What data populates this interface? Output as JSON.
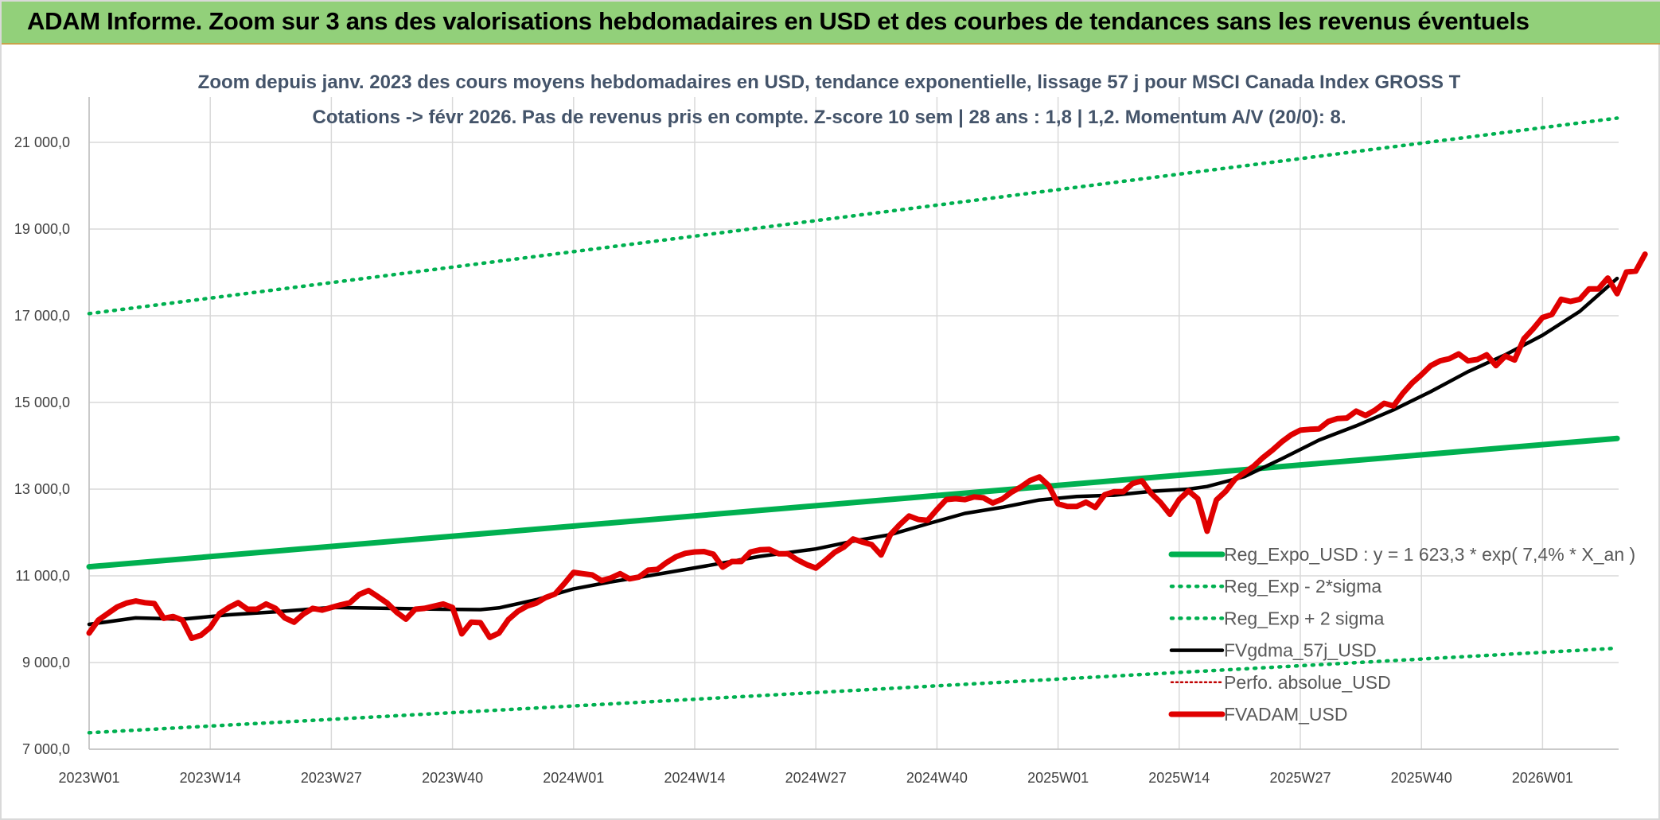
{
  "banner": {
    "title": "ADAM Informe. Zoom sur 3 ans des valorisations hebdomadaires en USD et des courbes de tendances sans les revenus éventuels"
  },
  "chart_data": {
    "type": "line",
    "title": "Zoom depuis janv. 2023 des cours moyens hebdomadaires en USD, tendance exponentielle, lissage 57 j pour MSCI Canada Index GROSS T",
    "subtitle": "Cotations -> févr 2026. Pas de revenus pris en compte. Z-score 10 sem | 28 ans : 1,8 | 1,2. Momentum A/V (20/0): 8.",
    "xlabel": "",
    "ylabel": "",
    "ylim": [
      7000,
      21000
    ],
    "y_ticks": [
      {
        "value": 7000,
        "label": "7 000,0"
      },
      {
        "value": 9000,
        "label": "9 000,0"
      },
      {
        "value": 11000,
        "label": "11 000,0"
      },
      {
        "value": 13000,
        "label": "13 000,0"
      },
      {
        "value": 15000,
        "label": "15 000,0"
      },
      {
        "value": 17000,
        "label": "17 000,0"
      },
      {
        "value": 19000,
        "label": "19 000,0"
      },
      {
        "value": 21000,
        "label": "21 000,0"
      }
    ],
    "x_tick_labels": [
      "2023W01",
      "2023W14",
      "2023W27",
      "2023W40",
      "2024W01",
      "2024W14",
      "2024W27",
      "2024W40",
      "2025W01",
      "2025W14",
      "2025W27",
      "2025W40",
      "2026W01"
    ],
    "x_week_index_range": [
      0,
      164
    ],
    "grid": true,
    "legend_position": "bottom-right",
    "series": [
      {
        "name": "Reg_Expo_USD : y = 1 623,3 * exp( 7,4% *  X_an )",
        "color": "#00b050",
        "style": "solid-thick",
        "points": [
          [
            0,
            11210
          ],
          [
            164,
            14170
          ]
        ]
      },
      {
        "name": "Reg_Exp - 2*sigma",
        "color": "#00b050",
        "style": "dotted",
        "points": [
          [
            0,
            7380
          ],
          [
            164,
            9330
          ]
        ]
      },
      {
        "name": "Reg_Exp + 2 sigma",
        "color": "#00b050",
        "style": "dotted",
        "points": [
          [
            0,
            17050
          ],
          [
            164,
            21560
          ]
        ]
      },
      {
        "name": "FVgdma_57j_USD",
        "color": "#000000",
        "style": "solid",
        "points": [
          [
            0,
            9880
          ],
          [
            5,
            10030
          ],
          [
            10,
            10000
          ],
          [
            15,
            10100
          ],
          [
            20,
            10170
          ],
          [
            26,
            10270
          ],
          [
            32,
            10250
          ],
          [
            38,
            10230
          ],
          [
            42,
            10220
          ],
          [
            44,
            10260
          ],
          [
            48,
            10450
          ],
          [
            52,
            10700
          ],
          [
            56,
            10860
          ],
          [
            60,
            11000
          ],
          [
            66,
            11220
          ],
          [
            72,
            11450
          ],
          [
            78,
            11620
          ],
          [
            82,
            11800
          ],
          [
            86,
            11950
          ],
          [
            90,
            12200
          ],
          [
            94,
            12440
          ],
          [
            98,
            12580
          ],
          [
            102,
            12750
          ],
          [
            106,
            12830
          ],
          [
            110,
            12860
          ],
          [
            114,
            12950
          ],
          [
            118,
            13000
          ],
          [
            120,
            13060
          ],
          [
            124,
            13290
          ],
          [
            128,
            13700
          ],
          [
            132,
            14130
          ],
          [
            136,
            14460
          ],
          [
            140,
            14830
          ],
          [
            144,
            15250
          ],
          [
            148,
            15710
          ],
          [
            152,
            16100
          ],
          [
            156,
            16550
          ],
          [
            160,
            17100
          ],
          [
            164,
            17860
          ]
        ]
      },
      {
        "name": "Perfo. absolue_USD",
        "color": "#c00000",
        "style": "dotted-thin",
        "points": []
      },
      {
        "name": "FVADAM_USD",
        "color": "#e00000",
        "style": "solid-thick",
        "points": [
          [
            0,
            9680
          ],
          [
            1,
            9980
          ],
          [
            2,
            10130
          ],
          [
            3,
            10280
          ],
          [
            4,
            10370
          ],
          [
            5,
            10420
          ],
          [
            6,
            10380
          ],
          [
            7,
            10360
          ],
          [
            8,
            10020
          ],
          [
            9,
            10060
          ],
          [
            10,
            9980
          ],
          [
            11,
            9560
          ],
          [
            12,
            9630
          ],
          [
            13,
            9810
          ],
          [
            14,
            10130
          ],
          [
            15,
            10270
          ],
          [
            16,
            10380
          ],
          [
            17,
            10230
          ],
          [
            18,
            10230
          ],
          [
            19,
            10350
          ],
          [
            20,
            10250
          ],
          [
            21,
            10030
          ],
          [
            22,
            9930
          ],
          [
            23,
            10120
          ],
          [
            24,
            10250
          ],
          [
            25,
            10210
          ],
          [
            26,
            10270
          ],
          [
            27,
            10330
          ],
          [
            28,
            10380
          ],
          [
            29,
            10570
          ],
          [
            30,
            10660
          ],
          [
            31,
            10520
          ],
          [
            32,
            10370
          ],
          [
            33,
            10160
          ],
          [
            34,
            10000
          ],
          [
            35,
            10230
          ],
          [
            36,
            10250
          ],
          [
            37,
            10300
          ],
          [
            38,
            10350
          ],
          [
            39,
            10270
          ],
          [
            40,
            9660
          ],
          [
            41,
            9930
          ],
          [
            42,
            9920
          ],
          [
            43,
            9580
          ],
          [
            44,
            9680
          ],
          [
            45,
            9990
          ],
          [
            46,
            10180
          ],
          [
            47,
            10300
          ],
          [
            48,
            10370
          ],
          [
            49,
            10500
          ],
          [
            50,
            10580
          ],
          [
            51,
            10820
          ],
          [
            52,
            11080
          ],
          [
            53,
            11050
          ],
          [
            54,
            11020
          ],
          [
            55,
            10890
          ],
          [
            56,
            10950
          ],
          [
            57,
            11050
          ],
          [
            58,
            10930
          ],
          [
            59,
            10970
          ],
          [
            60,
            11130
          ],
          [
            61,
            11150
          ],
          [
            62,
            11310
          ],
          [
            63,
            11440
          ],
          [
            64,
            11520
          ],
          [
            65,
            11550
          ],
          [
            66,
            11560
          ],
          [
            67,
            11500
          ],
          [
            68,
            11200
          ],
          [
            69,
            11330
          ],
          [
            70,
            11330
          ],
          [
            71,
            11550
          ],
          [
            72,
            11600
          ],
          [
            73,
            11610
          ],
          [
            74,
            11510
          ],
          [
            75,
            11510
          ],
          [
            76,
            11370
          ],
          [
            77,
            11260
          ],
          [
            78,
            11180
          ],
          [
            79,
            11350
          ],
          [
            80,
            11540
          ],
          [
            81,
            11660
          ],
          [
            82,
            11850
          ],
          [
            83,
            11780
          ],
          [
            84,
            11720
          ],
          [
            85,
            11480
          ],
          [
            86,
            11950
          ],
          [
            87,
            12180
          ],
          [
            88,
            12380
          ],
          [
            89,
            12300
          ],
          [
            90,
            12280
          ],
          [
            91,
            12530
          ],
          [
            92,
            12760
          ],
          [
            93,
            12780
          ],
          [
            94,
            12760
          ],
          [
            95,
            12820
          ],
          [
            96,
            12800
          ],
          [
            97,
            12680
          ],
          [
            98,
            12770
          ],
          [
            99,
            12930
          ],
          [
            100,
            13050
          ],
          [
            101,
            13200
          ],
          [
            102,
            13280
          ],
          [
            103,
            13080
          ],
          [
            104,
            12660
          ],
          [
            105,
            12600
          ],
          [
            106,
            12600
          ],
          [
            107,
            12700
          ],
          [
            108,
            12580
          ],
          [
            109,
            12870
          ],
          [
            110,
            12940
          ],
          [
            111,
            12940
          ],
          [
            112,
            13130
          ],
          [
            113,
            13190
          ],
          [
            114,
            12900
          ],
          [
            115,
            12690
          ],
          [
            116,
            12420
          ],
          [
            117,
            12760
          ],
          [
            118,
            12960
          ],
          [
            119,
            12780
          ],
          [
            120,
            12030
          ],
          [
            121,
            12750
          ],
          [
            122,
            12950
          ],
          [
            123,
            13230
          ],
          [
            124,
            13380
          ],
          [
            125,
            13530
          ],
          [
            126,
            13730
          ],
          [
            127,
            13900
          ],
          [
            128,
            14090
          ],
          [
            129,
            14250
          ],
          [
            130,
            14360
          ],
          [
            131,
            14380
          ],
          [
            132,
            14390
          ],
          [
            133,
            14560
          ],
          [
            134,
            14630
          ],
          [
            135,
            14640
          ],
          [
            136,
            14800
          ],
          [
            137,
            14700
          ],
          [
            138,
            14820
          ],
          [
            139,
            14980
          ],
          [
            140,
            14920
          ],
          [
            141,
            15210
          ],
          [
            142,
            15450
          ],
          [
            143,
            15640
          ],
          [
            144,
            15850
          ],
          [
            145,
            15960
          ],
          [
            146,
            16010
          ],
          [
            147,
            16120
          ],
          [
            148,
            15960
          ],
          [
            149,
            15990
          ],
          [
            150,
            16100
          ],
          [
            151,
            15850
          ],
          [
            152,
            16070
          ],
          [
            153,
            15980
          ],
          [
            154,
            16470
          ],
          [
            155,
            16700
          ],
          [
            156,
            16960
          ],
          [
            157,
            17030
          ],
          [
            158,
            17380
          ],
          [
            159,
            17330
          ],
          [
            160,
            17380
          ],
          [
            161,
            17620
          ],
          [
            162,
            17620
          ],
          [
            163,
            17870
          ],
          [
            164,
            17510
          ],
          [
            165,
            18010
          ],
          [
            166,
            18030
          ],
          [
            167,
            18420
          ]
        ]
      }
    ]
  }
}
